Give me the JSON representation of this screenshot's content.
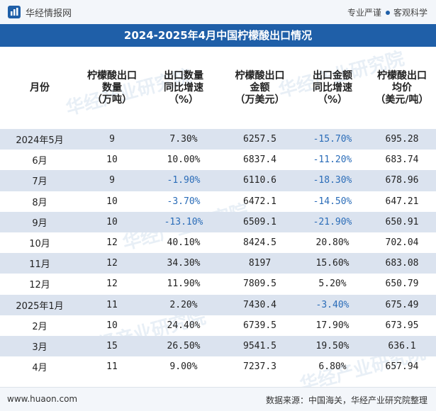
{
  "header": {
    "brand": "华经情报网",
    "slogan_left": "专业严谨",
    "slogan_right": "客观科学",
    "title": "2024-2025年4月中国柠檬酸出口情况"
  },
  "watermark": "华经产业研究院",
  "table": {
    "columns": [
      "月份",
      "柠檬酸出口数量（万吨）",
      "出口数量同比增速（%）",
      "柠檬酸出口金额（万美元）",
      "出口金额同比增速（%）",
      "柠檬酸出口均价（美元/吨）"
    ],
    "rows": [
      {
        "month": "2024年5月",
        "qty": "9",
        "qty_yoy": "7.30%",
        "amount": "6257.5",
        "amount_yoy": "-15.70%",
        "price": "695.28"
      },
      {
        "month": "6月",
        "qty": "10",
        "qty_yoy": "10.00%",
        "amount": "6837.4",
        "amount_yoy": "-11.20%",
        "price": "683.74"
      },
      {
        "month": "7月",
        "qty": "9",
        "qty_yoy": "-1.90%",
        "amount": "6110.6",
        "amount_yoy": "-18.30%",
        "price": "678.96"
      },
      {
        "month": "8月",
        "qty": "10",
        "qty_yoy": "-3.70%",
        "amount": "6472.1",
        "amount_yoy": "-14.50%",
        "price": "647.21"
      },
      {
        "month": "9月",
        "qty": "10",
        "qty_yoy": "-13.10%",
        "amount": "6509.1",
        "amount_yoy": "-21.90%",
        "price": "650.91"
      },
      {
        "month": "10月",
        "qty": "12",
        "qty_yoy": "40.10%",
        "amount": "8424.5",
        "amount_yoy": "20.80%",
        "price": "702.04"
      },
      {
        "month": "11月",
        "qty": "12",
        "qty_yoy": "34.30%",
        "amount": "8197",
        "amount_yoy": "15.60%",
        "price": "683.08"
      },
      {
        "month": "12月",
        "qty": "12",
        "qty_yoy": "11.90%",
        "amount": "7809.5",
        "amount_yoy": "5.20%",
        "price": "650.79"
      },
      {
        "month": "2025年1月",
        "qty": "11",
        "qty_yoy": "2.20%",
        "amount": "7430.4",
        "amount_yoy": "-3.40%",
        "price": "675.49"
      },
      {
        "month": "2月",
        "qty": "10",
        "qty_yoy": "24.40%",
        "amount": "6739.5",
        "amount_yoy": "17.90%",
        "price": "673.95"
      },
      {
        "month": "3月",
        "qty": "15",
        "qty_yoy": "26.50%",
        "amount": "9541.5",
        "amount_yoy": "19.50%",
        "price": "636.1"
      },
      {
        "month": "4月",
        "qty": "11",
        "qty_yoy": "9.00%",
        "amount": "7237.3",
        "amount_yoy": "6.80%",
        "price": "657.94"
      }
    ]
  },
  "footer": {
    "site": "www.huaon.com",
    "source": "数据来源：中国海关，华经产业研究院整理"
  },
  "colors": {
    "accent": "#1f5fa8",
    "row_shade": "#dbe3ef",
    "negative": "#2a6cb8"
  }
}
